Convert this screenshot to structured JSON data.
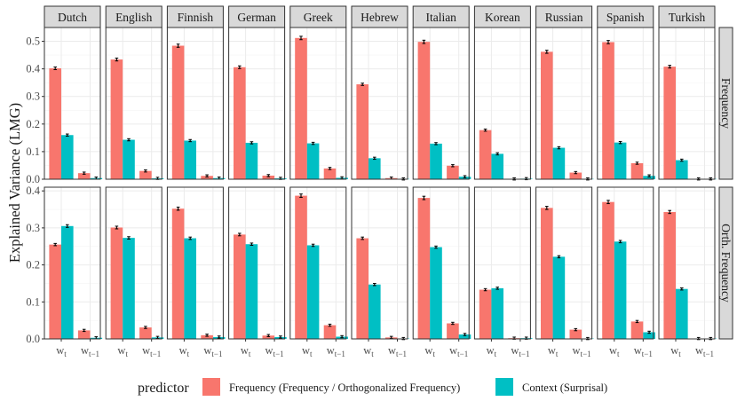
{
  "chart_data": {
    "type": "bar",
    "ylabel": "Explained Variance (LMG)",
    "x_categories": [
      "w_t",
      "w_{t-1}"
    ],
    "x_tick_labels": [
      {
        "base": "w",
        "sub": "t"
      },
      {
        "base": "w",
        "sub": "t−1"
      }
    ],
    "languages": [
      "Dutch",
      "English",
      "Finnish",
      "German",
      "Greek",
      "Hebrew",
      "Italian",
      "Korean",
      "Russian",
      "Spanish",
      "Turkish"
    ],
    "rows": [
      {
        "label": "Frequency",
        "ylim": [
          0,
          0.55
        ],
        "yticks": [
          0.0,
          0.1,
          0.2,
          0.3,
          0.4,
          0.5
        ],
        "ytick_labels": [
          "0.0",
          "0.1",
          "0.2",
          "0.3",
          "0.4",
          "0.5"
        ]
      },
      {
        "label": "Orth. Frequency",
        "ylim": [
          0,
          0.41
        ],
        "yticks": [
          0.0,
          0.1,
          0.2,
          0.3,
          0.4
        ],
        "ytick_labels": [
          "0.0",
          "0.1",
          "0.2",
          "0.3",
          "0.4"
        ]
      }
    ],
    "series": [
      {
        "name": "Frequency (Frequency / Orthogonalized Frequency)",
        "color": "#F8766D",
        "values": [
          {
            "Dutch": [
              0.402,
              0.022
            ],
            "English": [
              0.434,
              0.03
            ],
            "Finnish": [
              0.484,
              0.012
            ],
            "German": [
              0.406,
              0.013
            ],
            "Greek": [
              0.512,
              0.039
            ],
            "Hebrew": [
              0.344,
              0.004
            ],
            "Italian": [
              0.498,
              0.049
            ],
            "Korean": [
              0.178,
              0.001
            ],
            "Russian": [
              0.462,
              0.024
            ],
            "Spanish": [
              0.497,
              0.058
            ],
            "Turkish": [
              0.408,
              0.001
            ]
          },
          {
            "Dutch": [
              0.255,
              0.023
            ],
            "English": [
              0.301,
              0.031
            ],
            "Finnish": [
              0.352,
              0.01
            ],
            "German": [
              0.282,
              0.009
            ],
            "Greek": [
              0.387,
              0.037
            ],
            "Hebrew": [
              0.272,
              0.004
            ],
            "Italian": [
              0.381,
              0.042
            ],
            "Korean": [
              0.133,
              0.002
            ],
            "Russian": [
              0.354,
              0.025
            ],
            "Spanish": [
              0.37,
              0.047
            ],
            "Turkish": [
              0.343,
              0.001
            ]
          }
        ]
      },
      {
        "name": "Context (Surprisal)",
        "color": "#00BFC4",
        "values": [
          {
            "Dutch": [
              0.16,
              0.004
            ],
            "English": [
              0.143,
              0.003
            ],
            "Finnish": [
              0.14,
              0.004
            ],
            "German": [
              0.132,
              0.003
            ],
            "Greek": [
              0.13,
              0.005
            ],
            "Hebrew": [
              0.076,
              0.001
            ],
            "Italian": [
              0.129,
              0.009
            ],
            "Korean": [
              0.092,
              0.002
            ],
            "Russian": [
              0.114,
              0.001
            ],
            "Spanish": [
              0.133,
              0.012
            ],
            "Turkish": [
              0.069,
              0.001
            ]
          },
          {
            "Dutch": [
              0.305,
              0.003
            ],
            "English": [
              0.273,
              0.004
            ],
            "Finnish": [
              0.272,
              0.005
            ],
            "German": [
              0.256,
              0.005
            ],
            "Greek": [
              0.253,
              0.006
            ],
            "Hebrew": [
              0.147,
              0.001
            ],
            "Italian": [
              0.248,
              0.012
            ],
            "Korean": [
              0.137,
              0.002
            ],
            "Russian": [
              0.222,
              0.001
            ],
            "Spanish": [
              0.263,
              0.018
            ],
            "Turkish": [
              0.135,
              0.001
            ]
          }
        ]
      }
    ],
    "legend": {
      "title": "predictor",
      "position": "bottom",
      "entries": [
        "Frequency (Frequency / Orthogonalized Frequency)",
        "Context (Surprisal)"
      ]
    },
    "grid": true
  }
}
